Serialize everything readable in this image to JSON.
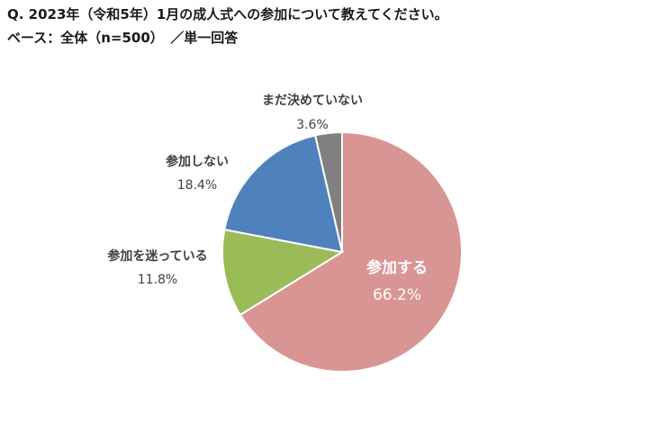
{
  "header": {
    "title": "Q. 2023年（令和5年）1月の成人式への参加について教えてください。",
    "subtitle": "ベース：全体（n=500）　／単一回答"
  },
  "chart_data": {
    "type": "pie",
    "start": "12 o'clock",
    "direction": "clockwise",
    "slices": [
      {
        "label": "参加する",
        "value": 66.2,
        "value_label": "66.2%",
        "color": "#d99594"
      },
      {
        "label": "参加を迷っている",
        "value": 11.8,
        "value_label": "11.8%",
        "color": "#9bbb59"
      },
      {
        "label": "参加しない",
        "value": 18.4,
        "value_label": "18.4%",
        "color": "#4f81bd"
      },
      {
        "label": "まだ決めていない",
        "value": 3.6,
        "value_label": "3.6%",
        "color": "#808080"
      }
    ],
    "slice_border_color": "#ffffff"
  }
}
